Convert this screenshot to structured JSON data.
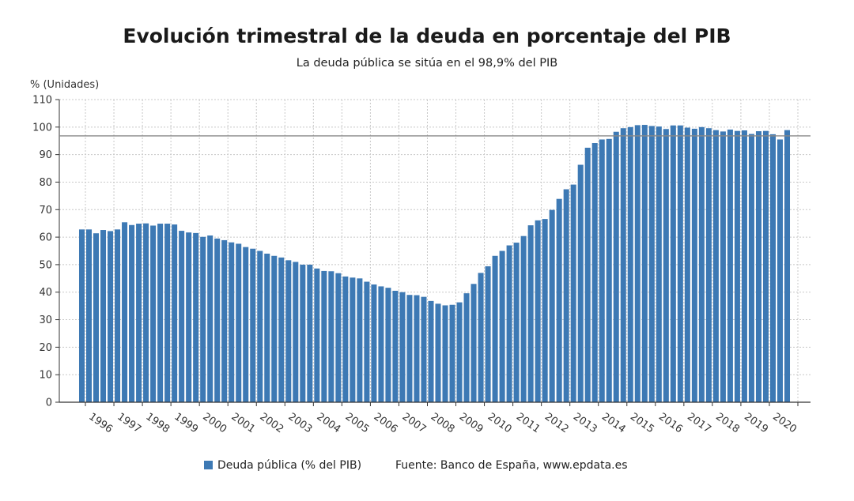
{
  "chart_data": {
    "type": "bar",
    "title": "Evolución trimestral de la deuda en porcentaje del PIB",
    "subtitle": "La deuda pública se sitúa en el 98,9% del PIB",
    "ylabel": "% (Unidades)",
    "xlabel": "",
    "ylim": [
      0,
      110
    ],
    "yticks": [
      0,
      10,
      20,
      30,
      40,
      50,
      60,
      70,
      80,
      90,
      100,
      110
    ],
    "grid": true,
    "reference_line": 96.8,
    "colors": {
      "bar": "#3d79b4",
      "reference_line": "#888888",
      "grid": "#c8c8c8"
    },
    "year_labels": [
      "1996",
      "1997",
      "1998",
      "1999",
      "2000",
      "2001",
      "2002",
      "2003",
      "2004",
      "2005",
      "2006",
      "2007",
      "2008",
      "2009",
      "2010",
      "2011",
      "2012",
      "2013",
      "2014",
      "2015",
      "2016",
      "2017",
      "2018",
      "2019",
      "2020"
    ],
    "series": [
      {
        "name": "Deuda pública (% del PIB)",
        "values": [
          62.8,
          62.8,
          61.4,
          62.6,
          62.2,
          62.8,
          65.4,
          64.4,
          64.9,
          65.0,
          64.2,
          64.9,
          64.9,
          64.6,
          62.3,
          61.7,
          61.5,
          60.1,
          60.6,
          59.5,
          58.9,
          58.1,
          57.6,
          56.4,
          55.8,
          55.0,
          54.0,
          53.2,
          52.6,
          51.6,
          51.0,
          50.0,
          50.0,
          48.6,
          47.7,
          47.6,
          46.9,
          45.7,
          45.3,
          45.0,
          43.8,
          42.8,
          42.1,
          41.6,
          40.5,
          40.0,
          39.0,
          38.9,
          38.3,
          36.8,
          35.8,
          35.2,
          35.4,
          36.3,
          39.6,
          43.0,
          47.0,
          49.4,
          53.2,
          55.0,
          57.0,
          58.0,
          60.4,
          64.3,
          66.1,
          66.6,
          69.9,
          73.9,
          77.4,
          79.1,
          86.3,
          92.5,
          94.2,
          95.5,
          95.7,
          98.3,
          99.6,
          100.0,
          100.7,
          100.8,
          100.4,
          100.2,
          99.3,
          100.6,
          100.6,
          99.8,
          99.4,
          100.0,
          99.6,
          98.9,
          98.4,
          99.1,
          98.6,
          98.8,
          97.5,
          98.5,
          98.6,
          97.4,
          95.5,
          98.9
        ]
      }
    ],
    "legend": {
      "position": "bottom",
      "source": "Fuente: Banco de España, www.epdata.es"
    }
  }
}
